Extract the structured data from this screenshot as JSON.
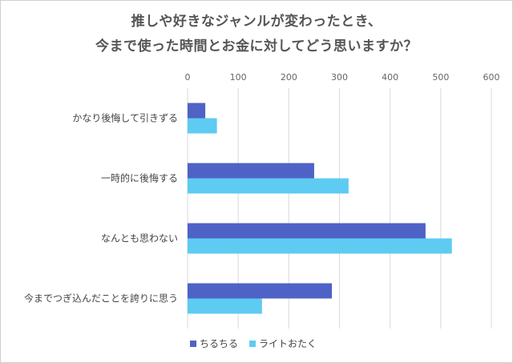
{
  "chart_data": {
    "type": "bar",
    "orientation": "horizontal",
    "title_line1": "推しや好きなジャンルが変わったとき、",
    "title_line2": "今まで使った時間とお金に対してどう思いますか？",
    "categories": [
      "かなり後悔して引きずる",
      "一時的に後悔する",
      "なんとも思わない",
      "今までつぎ込んだことを誇りに思う"
    ],
    "series": [
      {
        "name": "ちるちる",
        "color": "#4f62c6",
        "values": [
          35,
          250,
          470,
          285
        ]
      },
      {
        "name": "ライトおたく",
        "color": "#5ecbf3",
        "values": [
          58,
          318,
          522,
          147
        ]
      }
    ],
    "xticks": [
      0,
      100,
      200,
      300,
      400,
      500,
      600
    ],
    "xlim": [
      0,
      600
    ],
    "grid": true,
    "legend_position": "bottom"
  }
}
